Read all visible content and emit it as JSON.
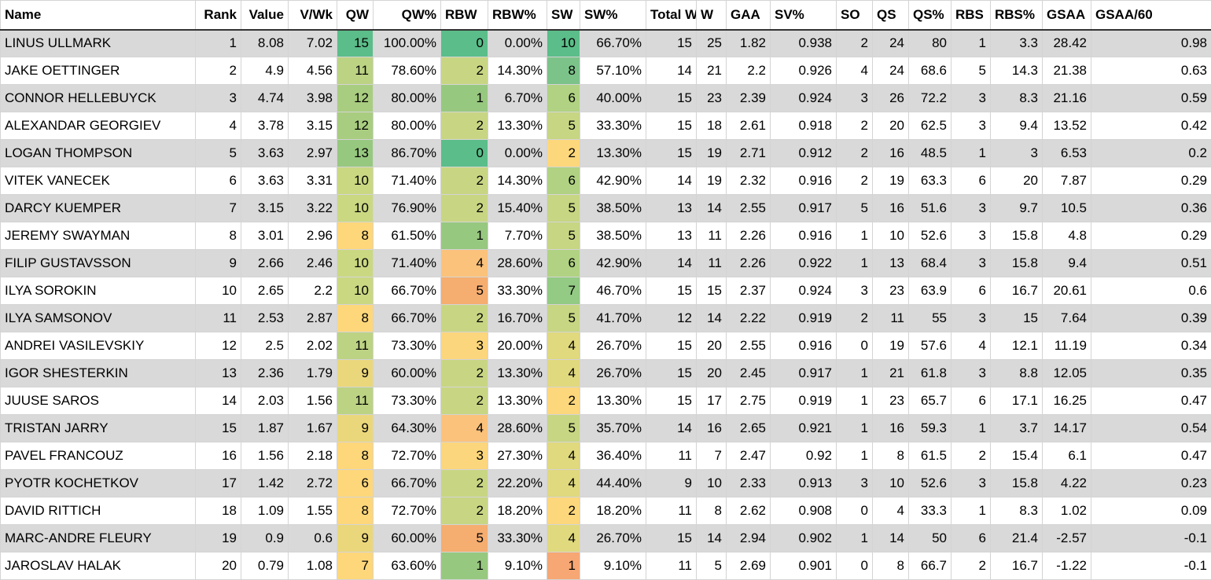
{
  "headers": [
    "Name",
    "Rank",
    "Value",
    "V/Wk",
    "QW",
    "QW%",
    "RBW",
    "RBW%",
    "SW",
    "SW%",
    "Total W",
    "W",
    "GAA",
    "SV%",
    "SO",
    "QS",
    "QS%",
    "RBS",
    "RBS%",
    "GSAA",
    "GSAA/60"
  ],
  "rows": [
    [
      "LINUS ULLMARK",
      "1",
      "8.08",
      "7.02",
      "15",
      "100.00%",
      "0",
      "0.00%",
      "10",
      "66.70%",
      "15",
      "25",
      "1.82",
      "0.938",
      "2",
      "24",
      "80",
      "1",
      "3.3",
      "28.42",
      "0.98"
    ],
    [
      "JAKE OETTINGER",
      "2",
      "4.9",
      "4.56",
      "11",
      "78.60%",
      "2",
      "14.30%",
      "8",
      "57.10%",
      "14",
      "21",
      "2.2",
      "0.926",
      "4",
      "24",
      "68.6",
      "5",
      "14.3",
      "21.38",
      "0.63"
    ],
    [
      "CONNOR HELLEBUYCK",
      "3",
      "4.74",
      "3.98",
      "12",
      "80.00%",
      "1",
      "6.70%",
      "6",
      "40.00%",
      "15",
      "23",
      "2.39",
      "0.924",
      "3",
      "26",
      "72.2",
      "3",
      "8.3",
      "21.16",
      "0.59"
    ],
    [
      "ALEXANDAR GEORGIEV",
      "4",
      "3.78",
      "3.15",
      "12",
      "80.00%",
      "2",
      "13.30%",
      "5",
      "33.30%",
      "15",
      "18",
      "2.61",
      "0.918",
      "2",
      "20",
      "62.5",
      "3",
      "9.4",
      "13.52",
      "0.42"
    ],
    [
      "LOGAN THOMPSON",
      "5",
      "3.63",
      "2.97",
      "13",
      "86.70%",
      "0",
      "0.00%",
      "2",
      "13.30%",
      "15",
      "19",
      "2.71",
      "0.912",
      "2",
      "16",
      "48.5",
      "1",
      "3",
      "6.53",
      "0.2"
    ],
    [
      "VITEK VANECEK",
      "6",
      "3.63",
      "3.31",
      "10",
      "71.40%",
      "2",
      "14.30%",
      "6",
      "42.90%",
      "14",
      "19",
      "2.32",
      "0.916",
      "2",
      "19",
      "63.3",
      "6",
      "20",
      "7.87",
      "0.29"
    ],
    [
      "DARCY KUEMPER",
      "7",
      "3.15",
      "3.22",
      "10",
      "76.90%",
      "2",
      "15.40%",
      "5",
      "38.50%",
      "13",
      "14",
      "2.55",
      "0.917",
      "5",
      "16",
      "51.6",
      "3",
      "9.7",
      "10.5",
      "0.36"
    ],
    [
      "JEREMY SWAYMAN",
      "8",
      "3.01",
      "2.96",
      "8",
      "61.50%",
      "1",
      "7.70%",
      "5",
      "38.50%",
      "13",
      "11",
      "2.26",
      "0.916",
      "1",
      "10",
      "52.6",
      "3",
      "15.8",
      "4.8",
      "0.29"
    ],
    [
      "FILIP GUSTAVSSON",
      "9",
      "2.66",
      "2.46",
      "10",
      "71.40%",
      "4",
      "28.60%",
      "6",
      "42.90%",
      "14",
      "11",
      "2.26",
      "0.922",
      "1",
      "13",
      "68.4",
      "3",
      "15.8",
      "9.4",
      "0.51"
    ],
    [
      "ILYA SOROKIN",
      "10",
      "2.65",
      "2.2",
      "10",
      "66.70%",
      "5",
      "33.30%",
      "7",
      "46.70%",
      "15",
      "15",
      "2.37",
      "0.924",
      "3",
      "23",
      "63.9",
      "6",
      "16.7",
      "20.61",
      "0.6"
    ],
    [
      "ILYA SAMSONOV",
      "11",
      "2.53",
      "2.87",
      "8",
      "66.70%",
      "2",
      "16.70%",
      "5",
      "41.70%",
      "12",
      "14",
      "2.22",
      "0.919",
      "2",
      "11",
      "55",
      "3",
      "15",
      "7.64",
      "0.39"
    ],
    [
      "ANDREI VASILEVSKIY",
      "12",
      "2.5",
      "2.02",
      "11",
      "73.30%",
      "3",
      "20.00%",
      "4",
      "26.70%",
      "15",
      "20",
      "2.55",
      "0.916",
      "0",
      "19",
      "57.6",
      "4",
      "12.1",
      "11.19",
      "0.34"
    ],
    [
      "IGOR SHESTERKIN",
      "13",
      "2.36",
      "1.79",
      "9",
      "60.00%",
      "2",
      "13.30%",
      "4",
      "26.70%",
      "15",
      "20",
      "2.45",
      "0.917",
      "1",
      "21",
      "61.8",
      "3",
      "8.8",
      "12.05",
      "0.35"
    ],
    [
      "JUUSE SAROS",
      "14",
      "2.03",
      "1.56",
      "11",
      "73.30%",
      "2",
      "13.30%",
      "2",
      "13.30%",
      "15",
      "17",
      "2.75",
      "0.919",
      "1",
      "23",
      "65.7",
      "6",
      "17.1",
      "16.25",
      "0.47"
    ],
    [
      "TRISTAN JARRY",
      "15",
      "1.87",
      "1.67",
      "9",
      "64.30%",
      "4",
      "28.60%",
      "5",
      "35.70%",
      "14",
      "16",
      "2.65",
      "0.921",
      "1",
      "16",
      "59.3",
      "1",
      "3.7",
      "14.17",
      "0.54"
    ],
    [
      "PAVEL FRANCOUZ",
      "16",
      "1.56",
      "2.18",
      "8",
      "72.70%",
      "3",
      "27.30%",
      "4",
      "36.40%",
      "11",
      "7",
      "2.47",
      "0.92",
      "1",
      "8",
      "61.5",
      "2",
      "15.4",
      "6.1",
      "0.47"
    ],
    [
      "PYOTR KOCHETKOV",
      "17",
      "1.42",
      "2.72",
      "6",
      "66.70%",
      "2",
      "22.20%",
      "4",
      "44.40%",
      "9",
      "10",
      "2.33",
      "0.913",
      "3",
      "10",
      "52.6",
      "3",
      "15.8",
      "4.22",
      "0.23"
    ],
    [
      "DAVID RITTICH",
      "18",
      "1.09",
      "1.55",
      "8",
      "72.70%",
      "2",
      "18.20%",
      "2",
      "18.20%",
      "11",
      "8",
      "2.62",
      "0.908",
      "0",
      "4",
      "33.3",
      "1",
      "8.3",
      "1.02",
      "0.09"
    ],
    [
      "MARC-ANDRE FLEURY",
      "19",
      "0.9",
      "0.6",
      "9",
      "60.00%",
      "5",
      "33.30%",
      "4",
      "26.70%",
      "15",
      "14",
      "2.94",
      "0.902",
      "1",
      "14",
      "50",
      "6",
      "21.4",
      "-2.57",
      "-0.1"
    ],
    [
      "JAROSLAV HALAK",
      "20",
      "0.79",
      "1.08",
      "7",
      "63.60%",
      "1",
      "9.10%",
      "1",
      "9.10%",
      "11",
      "5",
      "2.69",
      "0.901",
      "0",
      "8",
      "66.7",
      "2",
      "16.7",
      "-1.22",
      "-0.1"
    ]
  ],
  "cell_colors": {
    "QW": [
      "#5bbd89",
      "#bcd384",
      "#a9cd80",
      "#a9cd80",
      "#97c87f",
      "#cad882",
      "#cad882",
      "#fed77a",
      "#cad882",
      "#cad882",
      "#fed77a",
      "#bcd384",
      "#ebd77b",
      "#bcd384",
      "#ebd77b",
      "#fed77a",
      "#fed77a",
      "#fed77a",
      "#ebd77b",
      "#fed77a"
    ],
    "RBW": [
      "#5bbd89",
      "#c8d683",
      "#97c87f",
      "#c8d683",
      "#5bbd89",
      "#c8d683",
      "#c8d683",
      "#97c87f",
      "#fbc27b",
      "#f5ad70",
      "#c8d683",
      "#fcd67c",
      "#c8d683",
      "#c8d683",
      "#fbc27b",
      "#fcd67c",
      "#c8d683",
      "#c8d683",
      "#f5ad70",
      "#97c87f"
    ],
    "SW": [
      "#5bbd89",
      "#7cc38a",
      "#b0d282",
      "#c7d683",
      "#fdd77b",
      "#b0d282",
      "#c7d683",
      "#c7d683",
      "#b0d282",
      "#93ca84",
      "#c7d683",
      "#e0d97e",
      "#e0d97e",
      "#fdd77b",
      "#c7d683",
      "#e0d97e",
      "#e0d97e",
      "#fdd77b",
      "#e0d97e",
      "#f6a774"
    ]
  }
}
